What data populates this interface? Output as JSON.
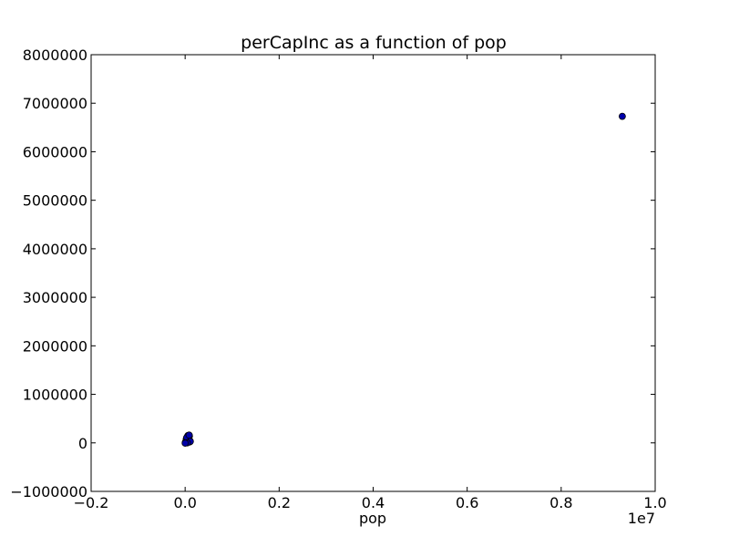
{
  "chart_data": {
    "type": "scatter",
    "title": "perCapInc as a function of pop",
    "xlabel": "pop",
    "ylabel": "",
    "x_offset_label": "1e7",
    "xlim": [
      -0.2,
      1.0
    ],
    "ylim": [
      -1000000,
      8000000
    ],
    "x_ticks": [
      -0.2,
      0.0,
      0.2,
      0.4,
      0.6,
      0.8,
      1.0
    ],
    "x_tick_labels": [
      "−0.2",
      "0.0",
      "0.2",
      "0.4",
      "0.6",
      "0.8",
      "1.0"
    ],
    "y_ticks": [
      -1000000,
      0,
      1000000,
      2000000,
      3000000,
      4000000,
      5000000,
      6000000,
      7000000,
      8000000
    ],
    "y_tick_labels": [
      "−1000000",
      "0",
      "1000000",
      "2000000",
      "3000000",
      "4000000",
      "5000000",
      "6000000",
      "7000000",
      "8000000"
    ],
    "grid": false,
    "marker_color": "#0000aa",
    "x_scale_note": "x values in units of 1e7",
    "points": [
      {
        "x": 0.0005,
        "y": 5000
      },
      {
        "x": 0.001,
        "y": 20000
      },
      {
        "x": 0.0015,
        "y": 10000
      },
      {
        "x": 0.002,
        "y": 40000
      },
      {
        "x": 0.003,
        "y": 15000
      },
      {
        "x": 0.004,
        "y": 60000
      },
      {
        "x": 0.005,
        "y": 30000
      },
      {
        "x": 0.006,
        "y": 90000
      },
      {
        "x": 0.007,
        "y": 50000
      },
      {
        "x": 0.008,
        "y": 120000
      },
      {
        "x": 0.009,
        "y": 140000
      },
      {
        "x": 0.01,
        "y": 40000
      },
      {
        "x": 0.006,
        "y": 150000
      },
      {
        "x": 0.0025,
        "y": 80000
      },
      {
        "x": 0.0035,
        "y": 110000
      },
      {
        "x": 0.0095,
        "y": 20000
      },
      {
        "x": 0.011,
        "y": 30000
      },
      {
        "x": 0.0085,
        "y": 160000
      },
      {
        "x": 0.0045,
        "y": 0
      },
      {
        "x": 0.0001,
        "y": -5000
      },
      {
        "x": 0.93,
        "y": 6730000
      }
    ]
  }
}
